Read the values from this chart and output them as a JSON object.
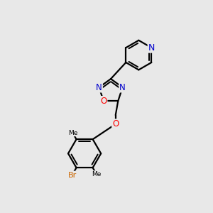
{
  "bg_color": "#e8e8e8",
  "bond_color": "#000000",
  "bond_width": 1.6,
  "atom_colors": {
    "N": "#0000cc",
    "O": "#ff0000",
    "Br": "#cc6600",
    "C": "#000000"
  },
  "font_size_atom": 8.5
}
